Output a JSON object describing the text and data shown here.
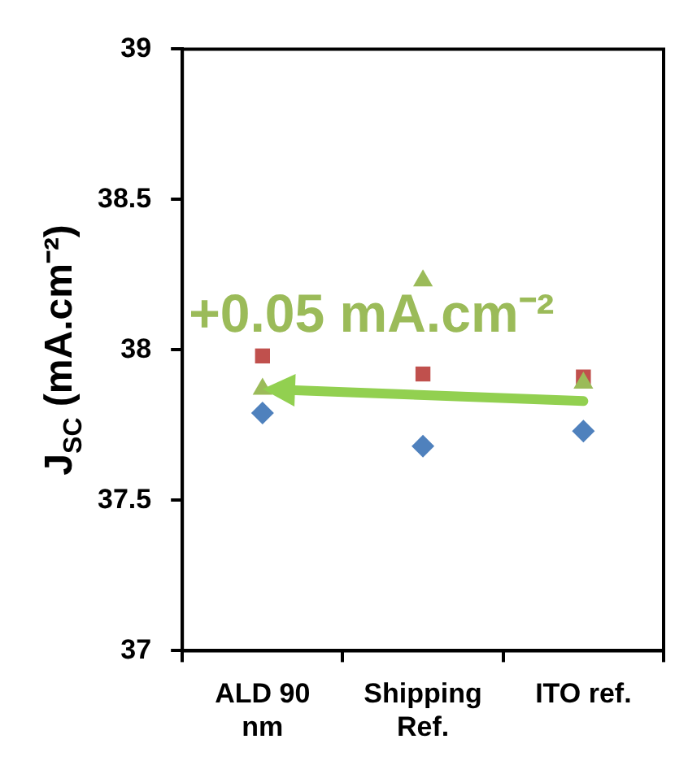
{
  "chart_data": {
    "type": "scatter",
    "ylabel": "J$_{SC}$ (mA.cm⁻²)",
    "categories": [
      "ALD 90 nm",
      "Shipping Ref.",
      "ITO ref."
    ],
    "series": [
      {
        "color": "#4f81bd",
        "marker": "diamond",
        "values": [
          37.79,
          37.68,
          37.73
        ]
      },
      {
        "color": "#c0504d",
        "marker": "square",
        "values": [
          37.98,
          37.92,
          37.91
        ]
      },
      {
        "color": "#9bbb59",
        "marker": "triangle",
        "values": [
          37.87,
          38.23,
          37.89
        ]
      }
    ],
    "ylim": [
      37,
      39
    ],
    "yticks": [
      37,
      37.5,
      38,
      38.5,
      39
    ],
    "grid": false,
    "legend": false,
    "annotations": [
      "+0.05 mA.cm⁻²"
    ]
  }
}
